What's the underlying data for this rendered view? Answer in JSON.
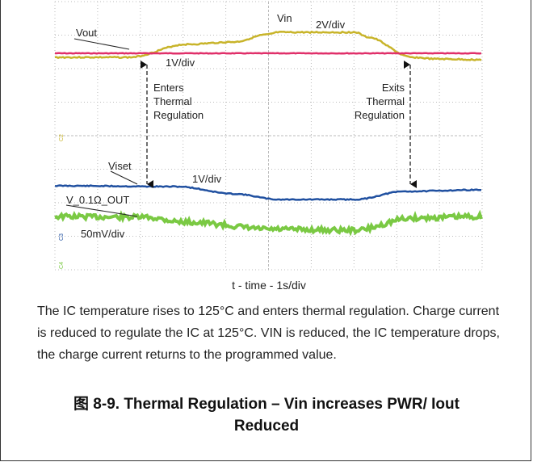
{
  "figure": {
    "scope": {
      "vout_label": "Vout",
      "vout_scale": "1V/div",
      "vin_label": "Vin",
      "vin_scale": "2V/div",
      "enter_lines": [
        "Enters",
        "Thermal",
        "Regulation"
      ],
      "exit_lines": [
        "Exits",
        "Thermal",
        "Regulation"
      ],
      "viset_label": "Viset",
      "viset_scale": "1V/div",
      "vout2_label": "V_0.1Ω_OUT",
      "vout2_scale": "50mV/div",
      "channels": [
        "C2",
        "C3",
        "C4"
      ]
    },
    "x_axis_label": "t - time - 1s/div",
    "caption": "The IC temperature rises to 125°C and enters thermal regulation. Charge current is reduced to regulate the IC at 125°C. VIN is reduced, the IC temperature drops, the charge current returns to the programmed value.",
    "title": "图 8-9. Thermal Regulation – Vin increases PWR/ Iout Reduced"
  }
}
